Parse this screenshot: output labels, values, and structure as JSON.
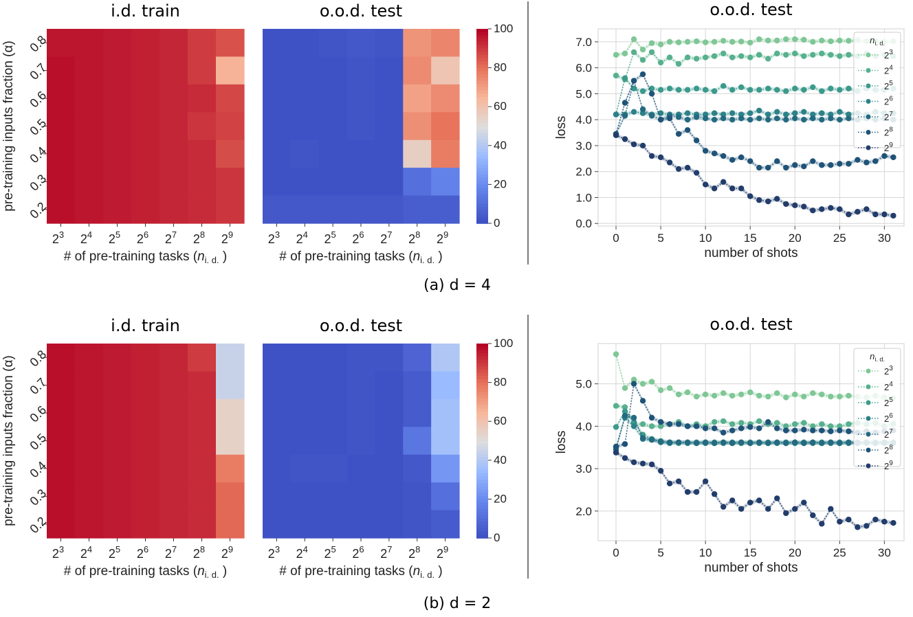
{
  "colors": {
    "grid": "#d6d6d6",
    "cmap_low": "#3b4cc0",
    "cmap_mid": "#dddddd",
    "cmap_high": "#b40426"
  },
  "chart_data": [
    {
      "id": "a-train",
      "type": "heatmap",
      "title": "i.d. train",
      "xlabel": "# of pre-training tasks (",
      "xlabel_var": "n",
      "xlabel_sub": "i. d.",
      "xlabel_end": ")",
      "ylabel": "pre-training inputs fraction (α)",
      "x_base": "2",
      "x_exps": [
        "3",
        "4",
        "5",
        "6",
        "7",
        "8",
        "9"
      ],
      "y_labels": [
        "0.8",
        "0.7",
        "0.6",
        "0.5",
        "0.4",
        "0.3",
        "0.2"
      ],
      "values": [
        [
          97,
          97,
          96,
          95,
          94,
          90,
          86
        ],
        [
          98,
          97,
          96,
          95,
          94,
          90,
          66
        ],
        [
          98,
          97,
          96,
          95,
          94,
          93,
          88
        ],
        [
          98,
          97,
          96,
          95,
          94,
          91,
          89
        ],
        [
          98,
          97,
          96,
          95,
          94,
          93,
          87
        ],
        [
          98,
          97,
          96,
          95,
          94,
          93,
          91
        ],
        [
          98,
          97,
          96,
          95,
          94,
          93,
          91
        ]
      ],
      "vmin": 0,
      "vmax": 100
    },
    {
      "id": "a-test",
      "type": "heatmap",
      "title": "o.o.d. test",
      "xlabel": "# of pre-training tasks (",
      "xlabel_var": "n",
      "xlabel_sub": "i. d.",
      "xlabel_end": ")",
      "x_base": "2",
      "x_exps": [
        "3",
        "4",
        "5",
        "6",
        "7",
        "8",
        "9"
      ],
      "y_labels": [
        "0.8",
        "0.7",
        "0.6",
        "0.5",
        "0.4",
        "0.3",
        "0.2"
      ],
      "values": [
        [
          2,
          2,
          3,
          4,
          3,
          73,
          76
        ],
        [
          2,
          2,
          2,
          3,
          2,
          75,
          60
        ],
        [
          2,
          2,
          2,
          3,
          2,
          70,
          75
        ],
        [
          2,
          2,
          2,
          3,
          2,
          74,
          80
        ],
        [
          2,
          3,
          2,
          2,
          2,
          56,
          78
        ],
        [
          2,
          2,
          2,
          2,
          2,
          12,
          18
        ],
        [
          4,
          4,
          4,
          4,
          4,
          6,
          6
        ]
      ],
      "vmin": 0,
      "vmax": 100,
      "colorbar_ticks": [
        "0",
        "20",
        "40",
        "60",
        "80",
        "100"
      ]
    },
    {
      "id": "a-loss",
      "type": "line",
      "title": "o.o.d. test",
      "xlabel": "number of shots",
      "ylabel": "loss",
      "xlim": [
        -2,
        32.2
      ],
      "ylim": [
        -0.1,
        7.5
      ],
      "xticks": [
        "0",
        "5",
        "10",
        "15",
        "20",
        "25",
        "30"
      ],
      "yticks": [
        "0.0",
        "1.0",
        "2.0",
        "3.0",
        "4.0",
        "5.0",
        "6.0",
        "7.0"
      ],
      "legend_title": "n",
      "legend_title_sub": "i. d.",
      "legend_position": "top-right",
      "x": [
        0,
        1,
        2,
        3,
        4,
        5,
        6,
        7,
        8,
        9,
        10,
        11,
        12,
        13,
        14,
        15,
        16,
        17,
        18,
        19,
        20,
        21,
        22,
        23,
        24,
        25,
        26,
        27,
        28,
        29,
        30,
        31
      ],
      "series": [
        {
          "name": "2",
          "exp": "3",
          "color": "#7fc796",
          "values": [
            6.5,
            6.55,
            7.1,
            6.7,
            6.95,
            6.9,
            7.0,
            6.98,
            7.0,
            7.02,
            6.98,
            7.0,
            7.04,
            7.0,
            7.01,
            6.97,
            7.1,
            7.05,
            7.05,
            7.1,
            7.1,
            7.08,
            7.0,
            7.05,
            7.02,
            7.05,
            7.04,
            7.06,
            7.02,
            7.03,
            7.0,
            7.02
          ]
        },
        {
          "name": "2",
          "exp": "4",
          "color": "#57b08e",
          "values": [
            5.7,
            5.55,
            6.6,
            6.3,
            6.6,
            6.2,
            6.4,
            6.15,
            6.4,
            6.35,
            6.4,
            6.45,
            6.55,
            6.4,
            6.45,
            6.4,
            6.5,
            6.35,
            6.55,
            6.5,
            6.55,
            6.45,
            6.5,
            6.55,
            6.5,
            6.45,
            6.5,
            6.45,
            6.55,
            6.45,
            6.5,
            6.45
          ]
        },
        {
          "name": "2",
          "exp": "5",
          "color": "#3c9a8c",
          "values": [
            4.2,
            5.6,
            5.2,
            5.1,
            5.2,
            5.15,
            5.2,
            5.15,
            5.15,
            5.2,
            5.15,
            5.1,
            5.3,
            5.15,
            5.25,
            5.15,
            5.15,
            5.2,
            5.15,
            5.1,
            5.2,
            5.15,
            5.25,
            5.1,
            5.2,
            5.15,
            5.2,
            5.1,
            5.2,
            5.15,
            5.15,
            5.2
          ]
        },
        {
          "name": "2",
          "exp": "6",
          "color": "#2d8288",
          "values": [
            4.2,
            4.2,
            4.3,
            4.25,
            4.2,
            4.25,
            4.2,
            4.2,
            4.25,
            4.2,
            4.2,
            4.25,
            4.2,
            4.25,
            4.2,
            4.25,
            4.35,
            4.2,
            4.3,
            4.2,
            4.25,
            4.3,
            4.2,
            4.25,
            4.2,
            4.3,
            4.2,
            4.25,
            4.2,
            4.3,
            4.25,
            4.25
          ]
        },
        {
          "name": "2",
          "exp": "7",
          "color": "#246a80",
          "values": [
            3.45,
            4.15,
            5.5,
            4.4,
            4.15,
            4.0,
            4.15,
            4.1,
            4.0,
            4.1,
            4.05,
            4.0,
            4.05,
            4.0,
            4.05,
            4.0,
            4.05,
            4.0,
            4.05,
            4.0,
            4.05,
            4.0,
            4.05,
            4.0,
            4.05,
            4.0,
            4.05,
            4.0,
            4.05,
            4.0,
            4.05,
            4.0
          ]
        },
        {
          "name": "2",
          "exp": "8",
          "color": "#1f5378",
          "values": [
            3.45,
            4.65,
            5.5,
            5.75,
            5.0,
            4.0,
            4.05,
            3.45,
            3.6,
            3.2,
            2.8,
            2.7,
            2.6,
            2.45,
            2.55,
            2.4,
            2.15,
            2.15,
            2.4,
            2.15,
            2.25,
            2.2,
            2.4,
            2.25,
            2.25,
            2.3,
            2.3,
            2.45,
            2.35,
            2.4,
            2.6,
            2.55
          ]
        },
        {
          "name": "2",
          "exp": "9",
          "color": "#223d6b",
          "values": [
            3.4,
            3.25,
            3.05,
            3.0,
            2.6,
            2.55,
            2.35,
            2.1,
            2.15,
            1.95,
            1.5,
            1.35,
            1.6,
            1.35,
            1.35,
            1.05,
            0.9,
            0.85,
            0.95,
            0.75,
            0.7,
            0.65,
            0.5,
            0.55,
            0.6,
            0.55,
            0.35,
            0.45,
            0.55,
            0.35,
            0.35,
            0.3
          ]
        }
      ]
    },
    {
      "id": "b-train",
      "type": "heatmap",
      "title": "i.d. train",
      "xlabel": "# of pre-training tasks (",
      "xlabel_var": "n",
      "xlabel_sub": "i. d.",
      "xlabel_end": ")",
      "ylabel": "pre-training inputs fraction (α)",
      "x_base": "2",
      "x_exps": [
        "3",
        "4",
        "5",
        "6",
        "7",
        "8",
        "9"
      ],
      "y_labels": [
        "0.8",
        "0.7",
        "0.6",
        "0.5",
        "0.4",
        "0.3",
        "0.2"
      ],
      "values": [
        [
          98,
          97,
          96,
          95,
          94,
          90,
          45
        ],
        [
          98,
          97,
          96,
          95,
          94,
          93,
          45
        ],
        [
          98,
          97,
          96,
          95,
          94,
          93,
          55
        ],
        [
          98,
          97,
          96,
          95,
          94,
          93,
          55
        ],
        [
          98,
          97,
          96,
          95,
          94,
          93,
          78
        ],
        [
          98,
          97,
          96,
          95,
          94,
          93,
          82
        ],
        [
          98,
          97,
          96,
          95,
          94,
          93,
          82
        ]
      ],
      "vmin": 0,
      "vmax": 100
    },
    {
      "id": "b-test",
      "type": "heatmap",
      "title": "o.o.d. test",
      "xlabel": "# of pre-training tasks (",
      "xlabel_var": "n",
      "xlabel_sub": "i. d.",
      "xlabel_end": ")",
      "x_base": "2",
      "x_exps": [
        "3",
        "4",
        "5",
        "6",
        "7",
        "8",
        "9"
      ],
      "y_labels": [
        "0.8",
        "0.7",
        "0.6",
        "0.5",
        "0.4",
        "0.3",
        "0.2"
      ],
      "values": [
        [
          2,
          2,
          2,
          3,
          3,
          8,
          40
        ],
        [
          2,
          2,
          2,
          3,
          2,
          5,
          35
        ],
        [
          2,
          2,
          2,
          3,
          2,
          5,
          37
        ],
        [
          2,
          2,
          2,
          3,
          2,
          14,
          37
        ],
        [
          2,
          3,
          3,
          2,
          2,
          4,
          24
        ],
        [
          2,
          2,
          2,
          2,
          2,
          3,
          12
        ],
        [
          2,
          2,
          2,
          2,
          2,
          3,
          5
        ]
      ],
      "vmin": 0,
      "vmax": 100,
      "colorbar_ticks": [
        "0",
        "20",
        "40",
        "60",
        "80",
        "100"
      ]
    },
    {
      "id": "b-loss",
      "type": "line",
      "title": "o.o.d. test",
      "xlabel": "number of shots",
      "ylabel": "loss",
      "xlim": [
        -2,
        32.2
      ],
      "ylim": [
        1.3,
        5.95
      ],
      "xticks": [
        "0",
        "5",
        "10",
        "15",
        "20",
        "25",
        "30"
      ],
      "yticks": [
        "2.0",
        "3.0",
        "4.0",
        "5.0"
      ],
      "legend_title": "n",
      "legend_title_sub": "i. d.",
      "legend_position": "top-right",
      "x": [
        0,
        1,
        2,
        3,
        4,
        5,
        6,
        7,
        8,
        9,
        10,
        11,
        12,
        13,
        14,
        15,
        16,
        17,
        18,
        19,
        20,
        21,
        22,
        23,
        24,
        25,
        26,
        27,
        28,
        29,
        30,
        31
      ],
      "series": [
        {
          "name": "2",
          "exp": "3",
          "color": "#7fc796",
          "values": [
            5.7,
            4.9,
            5.1,
            5.0,
            5.05,
            4.85,
            4.9,
            4.75,
            4.8,
            4.7,
            4.75,
            4.72,
            4.78,
            4.72,
            4.75,
            4.8,
            4.72,
            4.7,
            4.78,
            4.68,
            4.75,
            4.7,
            4.78,
            4.75,
            4.7,
            4.7,
            4.72,
            4.7,
            4.68,
            4.72,
            4.68,
            4.66
          ]
        },
        {
          "name": "2",
          "exp": "4",
          "color": "#57b08e",
          "values": [
            4.48,
            4.45,
            4.05,
            4.05,
            4.0,
            4.0,
            4.05,
            4.1,
            4.0,
            4.05,
            4.0,
            4.1,
            4.12,
            4.05,
            4.08,
            4.05,
            4.12,
            4.05,
            4.08,
            4.0,
            4.05,
            4.08,
            4.0,
            4.05,
            4.0,
            4.0,
            4.05,
            4.08,
            4.05,
            4.08,
            4.0,
            4.06
          ]
        },
        {
          "name": "2",
          "exp": "5",
          "color": "#3c9a8c",
          "values": [
            3.98,
            4.35,
            4.1,
            3.8,
            3.7,
            3.65,
            3.62,
            3.6,
            3.62,
            3.6,
            3.62,
            3.6,
            3.62,
            3.6,
            3.62,
            3.6,
            3.62,
            3.6,
            3.62,
            3.6,
            3.62,
            3.6,
            3.62,
            3.6,
            3.62,
            3.6,
            3.62,
            3.6,
            3.62,
            3.6,
            3.62,
            3.6
          ]
        },
        {
          "name": "2",
          "exp": "6",
          "color": "#2d8288",
          "values": [
            3.5,
            4.2,
            4.0,
            3.7,
            3.68,
            3.62,
            3.6,
            3.62,
            3.6,
            3.62,
            3.6,
            3.62,
            3.6,
            3.62,
            3.6,
            3.62,
            3.6,
            3.62,
            3.6,
            3.62,
            3.6,
            3.62,
            3.6,
            3.62,
            3.6,
            3.62,
            3.6,
            3.62,
            3.6,
            3.62,
            3.6,
            3.62
          ]
        },
        {
          "name": "2",
          "exp": "7",
          "color": "#246a80",
          "values": [
            3.45,
            4.25,
            4.2,
            3.72,
            3.68,
            3.64,
            3.62,
            3.62,
            3.62,
            3.6,
            3.62,
            3.6,
            3.62,
            3.6,
            3.62,
            3.6,
            3.62,
            3.6,
            3.62,
            3.6,
            3.62,
            3.6,
            3.62,
            3.6,
            3.62,
            3.6,
            3.62,
            3.6,
            3.62,
            3.6,
            3.62,
            3.6
          ]
        },
        {
          "name": "2",
          "exp": "8",
          "color": "#1f5378",
          "values": [
            3.52,
            3.58,
            5.0,
            4.6,
            4.2,
            4.1,
            4.05,
            4.05,
            4.0,
            4.0,
            3.95,
            3.95,
            3.85,
            3.9,
            3.95,
            3.98,
            3.95,
            4.1,
            3.95,
            3.9,
            3.9,
            3.92,
            3.9,
            3.9,
            3.88,
            3.9,
            3.88,
            3.85,
            3.88,
            3.85,
            3.88,
            3.9
          ]
        },
        {
          "name": "2",
          "exp": "9",
          "color": "#223d6b",
          "values": [
            3.38,
            3.25,
            3.15,
            3.12,
            3.1,
            2.95,
            2.65,
            2.7,
            2.45,
            2.45,
            2.7,
            2.4,
            2.1,
            2.25,
            2.05,
            2.2,
            2.25,
            2.05,
            2.3,
            1.95,
            2.05,
            2.2,
            1.9,
            1.7,
            2.05,
            1.75,
            1.8,
            1.62,
            1.65,
            1.8,
            1.75,
            1.72
          ]
        }
      ]
    }
  ],
  "captions": {
    "a": "(a)  d = 4",
    "b": "(b)  d = 2"
  }
}
